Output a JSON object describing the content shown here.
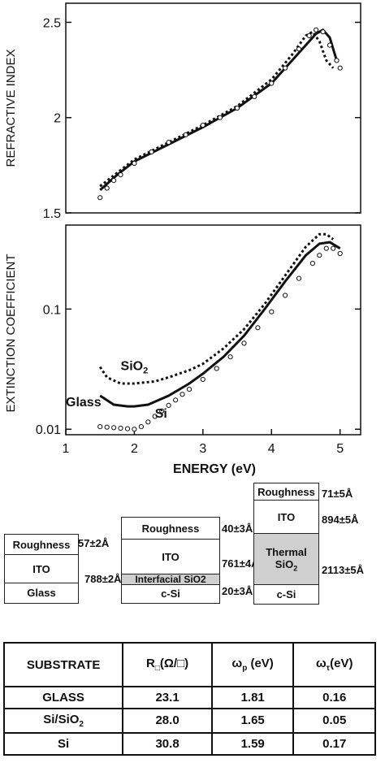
{
  "charts": {
    "top": {
      "type": "scatter",
      "ylabel": "REFRACTIVE INDEX",
      "xlim": [
        1,
        5.3
      ],
      "ylim": [
        1.5,
        2.6
      ],
      "yticks": [
        {
          "v": 1.5,
          "label": "1.5"
        },
        {
          "v": 2,
          "label": "2"
        },
        {
          "v": 2.5,
          "label": "2.5"
        }
      ],
      "series": [
        {
          "style": "solid",
          "x": [
            1.5,
            1.75,
            2.0,
            2.5,
            3.0,
            3.5,
            4.0,
            4.3,
            4.55,
            4.65,
            4.75,
            4.85,
            4.95
          ],
          "y": [
            1.62,
            1.7,
            1.77,
            1.86,
            1.95,
            2.05,
            2.18,
            2.3,
            2.4,
            2.44,
            2.46,
            2.42,
            2.3
          ]
        },
        {
          "style": "dashed",
          "x": [
            1.5,
            1.75,
            2.0,
            2.5,
            3.0,
            3.5,
            4.0,
            4.3,
            4.5,
            4.6,
            4.7,
            4.8,
            4.9
          ],
          "y": [
            1.64,
            1.71,
            1.78,
            1.87,
            1.96,
            2.06,
            2.2,
            2.33,
            2.43,
            2.45,
            2.4,
            2.3,
            2.26
          ]
        },
        {
          "style": "open",
          "x": [
            1.5,
            1.6,
            1.7,
            1.8,
            2.0,
            2.25,
            2.5,
            2.75,
            3.0,
            3.25,
            3.5,
            3.75,
            4.0,
            4.2,
            4.4,
            4.55,
            4.65,
            4.75,
            4.85,
            4.95,
            5.0
          ],
          "y": [
            1.58,
            1.63,
            1.67,
            1.7,
            1.76,
            1.82,
            1.87,
            1.91,
            1.96,
            2.0,
            2.05,
            2.11,
            2.18,
            2.26,
            2.36,
            2.43,
            2.46,
            2.45,
            2.38,
            2.3,
            2.26
          ]
        }
      ]
    },
    "bottom": {
      "type": "scatter",
      "ylabel": "EXTINCTION COEFFICIENT",
      "xlabel": "ENERGY (eV)",
      "yscale": "log",
      "xlim": [
        1,
        5.3
      ],
      "ylim": [
        0.009,
        0.5
      ],
      "xticks": [
        {
          "v": 1,
          "label": "1"
        },
        {
          "v": 2,
          "label": "2"
        },
        {
          "v": 3,
          "label": "3"
        },
        {
          "v": 4,
          "label": "4"
        },
        {
          "v": 5,
          "label": "5"
        }
      ],
      "yticks": [
        {
          "v": 0.01,
          "label": "0.01"
        },
        {
          "v": 0.1,
          "label": "0.1"
        }
      ],
      "series": [
        {
          "name": "Glass",
          "style": "solid",
          "x": [
            1.5,
            1.7,
            1.9,
            2.0,
            2.2,
            2.5,
            2.8,
            3.0,
            3.3,
            3.6,
            3.9,
            4.2,
            4.5,
            4.7,
            4.85,
            5.0
          ],
          "y": [
            0.019,
            0.016,
            0.0155,
            0.0155,
            0.016,
            0.019,
            0.024,
            0.029,
            0.04,
            0.06,
            0.1,
            0.17,
            0.28,
            0.35,
            0.36,
            0.32
          ]
        },
        {
          "name": "SiO2",
          "style": "dashed",
          "x": [
            1.5,
            1.6,
            1.8,
            2.0,
            2.3,
            2.5,
            2.8,
            3.0,
            3.3,
            3.6,
            3.9,
            4.2,
            4.5,
            4.7,
            4.8,
            4.9
          ],
          "y": [
            0.033,
            0.027,
            0.024,
            0.024,
            0.025,
            0.027,
            0.031,
            0.035,
            0.047,
            0.068,
            0.11,
            0.19,
            0.33,
            0.42,
            0.42,
            0.38
          ]
        },
        {
          "name": "Si",
          "style": "open",
          "x": [
            1.5,
            1.6,
            1.7,
            1.8,
            1.9,
            2.0,
            2.1,
            2.2,
            2.3,
            2.4,
            2.5,
            2.6,
            2.7,
            2.8,
            3.0,
            3.2,
            3.4,
            3.6,
            3.8,
            4.0,
            4.2,
            4.4,
            4.6,
            4.7,
            4.8,
            4.9,
            5.0
          ],
          "y": [
            0.0105,
            0.0104,
            0.0103,
            0.0102,
            0.0101,
            0.01,
            0.0105,
            0.0115,
            0.0128,
            0.0142,
            0.0158,
            0.0175,
            0.0195,
            0.0215,
            0.026,
            0.032,
            0.04,
            0.052,
            0.07,
            0.095,
            0.13,
            0.18,
            0.24,
            0.28,
            0.32,
            0.32,
            0.29
          ]
        }
      ],
      "labels": [
        {
          "text": "SiO",
          "sub": "2",
          "x": 1.8,
          "y": 0.031
        },
        {
          "text": "Glass",
          "x": 1.0,
          "y": 0.0155
        },
        {
          "text": "Si",
          "x": 2.3,
          "y": 0.0125
        }
      ]
    }
  },
  "stacks": {
    "glass": {
      "layers": [
        "Roughness",
        "ITO",
        "Glass"
      ],
      "thickness": [
        "57±2Å",
        "788±2Å"
      ]
    },
    "sio2": {
      "layers": [
        "Roughness",
        "ITO",
        "Interfacial SiO2",
        "c-Si"
      ],
      "thickness": [
        "40±3Å",
        "761±4Å",
        "20±3Å"
      ]
    },
    "thermal": {
      "layers": [
        "Roughness",
        "ITO",
        "Thermal",
        "SiO",
        "2",
        "c-Si"
      ],
      "thickness": [
        "71±5Å",
        "894±5Å",
        "2113±5Å"
      ]
    }
  },
  "table": {
    "headers": {
      "substrate": "SUBSTRATE",
      "r_main": "R",
      "r_sub": "□",
      "r_unit": "(Ω/□)",
      "wp_main": "ω",
      "wp_sub": "p",
      "wp_unit": "(eV)",
      "wt_main": "ω",
      "wt_sub": "τ",
      "wt_unit": "(eV)"
    },
    "rows": [
      {
        "substrate": "GLASS",
        "r": "23.1",
        "wp": "1.81",
        "wt": "0.16"
      },
      {
        "substrate": "Si/SiO",
        "sub": "2",
        "r": "28.0",
        "wp": "1.65",
        "wt": "0.05"
      },
      {
        "substrate": "Si",
        "r": "30.8",
        "wp": "1.59",
        "wt": "0.17"
      }
    ]
  }
}
